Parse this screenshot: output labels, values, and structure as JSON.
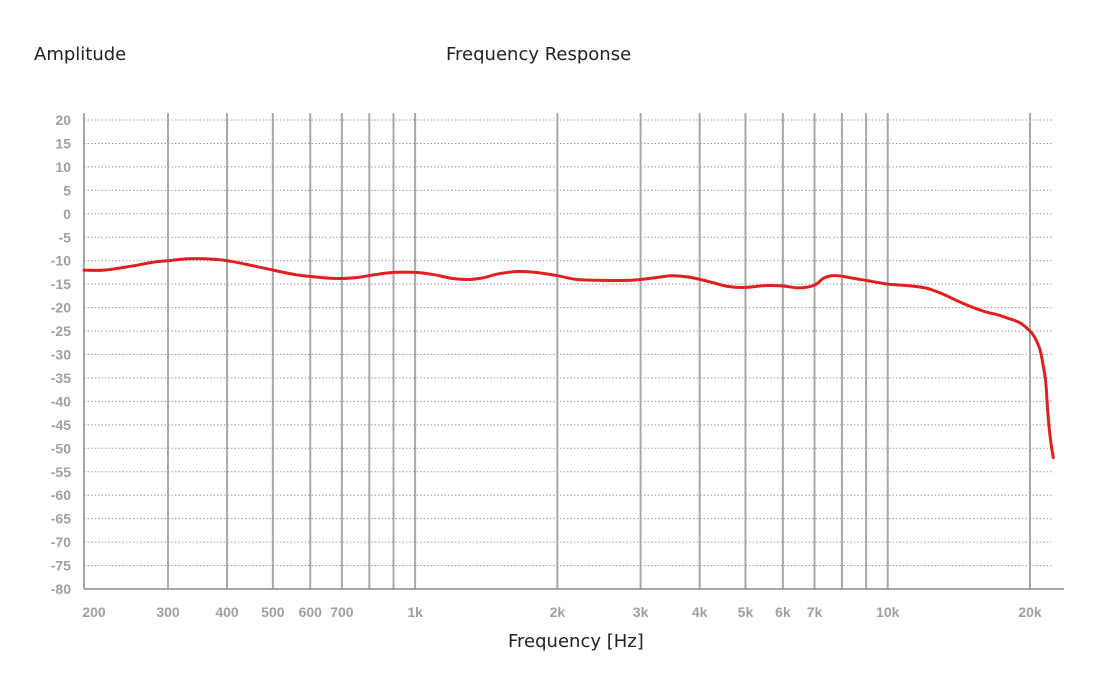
{
  "chart_data": {
    "type": "line",
    "title": "Frequency Response",
    "ylabel": "Amplitude",
    "xlabel": "Frequency [Hz]",
    "xscale": "log",
    "xlim": [
      200,
      22000
    ],
    "ylim": [
      -80,
      20
    ],
    "yticks": [
      20,
      15,
      10,
      5,
      0,
      -5,
      -10,
      -15,
      -20,
      -25,
      -30,
      -35,
      -40,
      -45,
      -50,
      -55,
      -60,
      -65,
      -70,
      -75,
      -80
    ],
    "xticks": [
      {
        "value": 200,
        "label": "200"
      },
      {
        "value": 300,
        "label": "300"
      },
      {
        "value": 400,
        "label": "400"
      },
      {
        "value": 500,
        "label": "500"
      },
      {
        "value": 600,
        "label": "600"
      },
      {
        "value": 700,
        "label": "700"
      },
      {
        "value": 1000,
        "label": "1k"
      },
      {
        "value": 2000,
        "label": "2k"
      },
      {
        "value": 3000,
        "label": "3k"
      },
      {
        "value": 4000,
        "label": "4k"
      },
      {
        "value": 5000,
        "label": "5k"
      },
      {
        "value": 6000,
        "label": "6k"
      },
      {
        "value": 7000,
        "label": "7k"
      },
      {
        "value": 10000,
        "label": "10k"
      },
      {
        "value": 20000,
        "label": "20k"
      }
    ],
    "vertical_grid": [
      300,
      400,
      500,
      600,
      700,
      800,
      900,
      1000,
      2000,
      3000,
      4000,
      5000,
      6000,
      7000,
      8000,
      9000,
      10000,
      20000
    ],
    "grid": {
      "horizontal": "dotted",
      "vertical": "solid"
    },
    "series": [
      {
        "color": "#e02020",
        "points": [
          [
            200,
            -12.0
          ],
          [
            220,
            -12.0
          ],
          [
            250,
            -11.2
          ],
          [
            280,
            -10.3
          ],
          [
            300,
            -10.0
          ],
          [
            330,
            -9.6
          ],
          [
            360,
            -9.6
          ],
          [
            400,
            -10.0
          ],
          [
            450,
            -11.0
          ],
          [
            500,
            -12.0
          ],
          [
            560,
            -13.0
          ],
          [
            620,
            -13.5
          ],
          [
            680,
            -13.8
          ],
          [
            750,
            -13.6
          ],
          [
            820,
            -13.0
          ],
          [
            900,
            -12.5
          ],
          [
            1000,
            -12.5
          ],
          [
            1100,
            -13.0
          ],
          [
            1200,
            -13.8
          ],
          [
            1300,
            -14.0
          ],
          [
            1400,
            -13.6
          ],
          [
            1500,
            -12.8
          ],
          [
            1650,
            -12.3
          ],
          [
            1800,
            -12.5
          ],
          [
            2000,
            -13.2
          ],
          [
            2200,
            -14.0
          ],
          [
            2500,
            -14.2
          ],
          [
            2800,
            -14.2
          ],
          [
            3000,
            -14.0
          ],
          [
            3300,
            -13.5
          ],
          [
            3500,
            -13.2
          ],
          [
            3800,
            -13.5
          ],
          [
            4200,
            -14.5
          ],
          [
            4600,
            -15.5
          ],
          [
            5000,
            -15.7
          ],
          [
            5500,
            -15.3
          ],
          [
            6000,
            -15.4
          ],
          [
            6500,
            -15.8
          ],
          [
            7000,
            -15.2
          ],
          [
            7300,
            -13.8
          ],
          [
            7600,
            -13.2
          ],
          [
            8000,
            -13.3
          ],
          [
            8500,
            -13.8
          ],
          [
            9000,
            -14.2
          ],
          [
            10000,
            -15.0
          ],
          [
            11000,
            -15.3
          ],
          [
            12000,
            -15.8
          ],
          [
            13000,
            -17.0
          ],
          [
            14000,
            -18.5
          ],
          [
            15000,
            -19.8
          ],
          [
            16000,
            -20.8
          ],
          [
            17000,
            -21.5
          ],
          [
            18000,
            -22.3
          ],
          [
            19000,
            -23.2
          ],
          [
            20000,
            -25.0
          ],
          [
            20500,
            -26.5
          ],
          [
            21000,
            -29.0
          ],
          [
            21300,
            -32.0
          ],
          [
            21600,
            -36.0
          ],
          [
            21800,
            -42.0
          ],
          [
            22000,
            -46.5
          ],
          [
            22200,
            -49.5
          ],
          [
            22400,
            -52.0
          ]
        ]
      }
    ]
  }
}
